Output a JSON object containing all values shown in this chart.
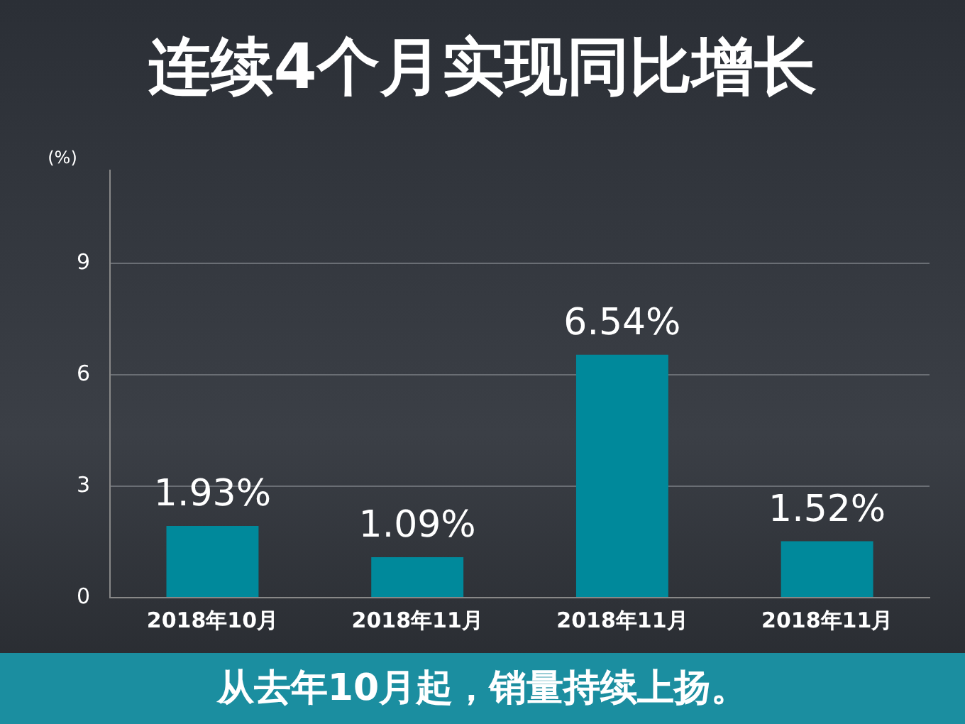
{
  "chart_data": {
    "type": "bar",
    "title": "连续4个月实现同比增长",
    "ylabel": "(%)",
    "categories": [
      "2018年10月",
      "2018年11月",
      "2018年11月",
      "2018年11月"
    ],
    "values": [
      1.93,
      1.09,
      6.54,
      1.52
    ],
    "color": "#00899b",
    "value_labels": [
      "1.93%",
      "1.09%",
      "6.54%",
      "1.52%"
    ],
    "ylim": [
      0,
      11.5
    ],
    "yticks": [
      0,
      3,
      6,
      9
    ],
    "grid": "y",
    "annotations": [
      "从去年10月起，销量持续上扬。"
    ]
  }
}
